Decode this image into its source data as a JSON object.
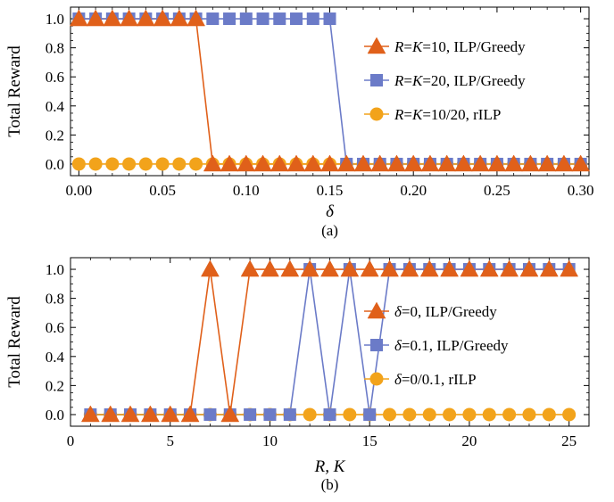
{
  "chart_data": [
    {
      "type": "line",
      "caption": "(a)",
      "xlabel": "δ",
      "ylabel": "Total Reward",
      "xlim": [
        -0.005,
        0.305
      ],
      "ylim": [
        -0.08,
        1.08
      ],
      "xticks": [
        "0.00",
        "0.05",
        "0.10",
        "0.15",
        "0.20",
        "0.25",
        "0.30"
      ],
      "yticks": [
        "0.0",
        "0.2",
        "0.4",
        "0.6",
        "0.8",
        "1.0"
      ],
      "legend_position": "right",
      "series": [
        {
          "name": "R=K=10, ILP/Greedy",
          "legend": {
            "v1": "R",
            "eq1": "=",
            "v2": "K",
            "rest": "=10, ILP/Greedy"
          },
          "marker": "triangle",
          "color": "#E0601A",
          "x": [
            0.0,
            0.01,
            0.02,
            0.03,
            0.04,
            0.05,
            0.06,
            0.07,
            0.08,
            0.09,
            0.1,
            0.11,
            0.12,
            0.13,
            0.14,
            0.15,
            0.16,
            0.17,
            0.18,
            0.19,
            0.2,
            0.21,
            0.22,
            0.23,
            0.24,
            0.25,
            0.26,
            0.27,
            0.28,
            0.29,
            0.3
          ],
          "y": [
            1,
            1,
            1,
            1,
            1,
            1,
            1,
            1,
            0,
            0,
            0,
            0,
            0,
            0,
            0,
            0,
            0,
            0,
            0,
            0,
            0,
            0,
            0,
            0,
            0,
            0,
            0,
            0,
            0,
            0,
            0
          ]
        },
        {
          "name": "R=K=20, ILP/Greedy",
          "legend": {
            "v1": "R",
            "eq1": "=",
            "v2": "K",
            "rest": "=20, ILP/Greedy"
          },
          "marker": "square",
          "color": "#6B7BC8",
          "x": [
            0.0,
            0.01,
            0.02,
            0.03,
            0.04,
            0.05,
            0.06,
            0.07,
            0.08,
            0.09,
            0.1,
            0.11,
            0.12,
            0.13,
            0.14,
            0.15,
            0.16,
            0.17,
            0.18,
            0.19,
            0.2,
            0.21,
            0.22,
            0.23,
            0.24,
            0.25,
            0.26,
            0.27,
            0.28,
            0.29,
            0.3
          ],
          "y": [
            1,
            1,
            1,
            1,
            1,
            1,
            1,
            1,
            1,
            1,
            1,
            1,
            1,
            1,
            1,
            1,
            0,
            0,
            0,
            0,
            0,
            0,
            0,
            0,
            0,
            0,
            0,
            0,
            0,
            0,
            0
          ]
        },
        {
          "name": "R=K=10/20, rILP",
          "legend": {
            "v1": "R",
            "eq1": "=",
            "v2": "K",
            "rest": "=10/20, rILP"
          },
          "marker": "circle",
          "color": "#F2A31B",
          "x": [
            0.0,
            0.01,
            0.02,
            0.03,
            0.04,
            0.05,
            0.06,
            0.07,
            0.08,
            0.09,
            0.1,
            0.11,
            0.12,
            0.13,
            0.14,
            0.15,
            0.16,
            0.17,
            0.18,
            0.19,
            0.2,
            0.21,
            0.22,
            0.23,
            0.24,
            0.25,
            0.26,
            0.27,
            0.28,
            0.29,
            0.3
          ],
          "y": [
            0,
            0,
            0,
            0,
            0,
            0,
            0,
            0,
            0,
            0,
            0,
            0,
            0,
            0,
            0,
            0,
            0,
            0,
            0,
            0,
            0,
            0,
            0,
            0,
            0,
            0,
            0,
            0,
            0,
            0,
            0
          ]
        }
      ]
    },
    {
      "type": "line",
      "caption": "(b)",
      "xlabel": "R, K",
      "ylabel": "Total Reward",
      "xlim": [
        0,
        26
      ],
      "ylim": [
        -0.08,
        1.08
      ],
      "xticks": [
        "0",
        "5",
        "10",
        "15",
        "20",
        "25"
      ],
      "yticks": [
        "0.0",
        "0.2",
        "0.4",
        "0.6",
        "0.8",
        "1.0"
      ],
      "legend_position": "right",
      "series": [
        {
          "name": "δ=0, ILP/Greedy",
          "legend": {
            "v1": "δ",
            "rest": "=0, ILP/Greedy"
          },
          "marker": "triangle",
          "color": "#E0601A",
          "x": [
            1,
            2,
            3,
            4,
            5,
            6,
            7,
            8,
            9,
            10,
            11,
            12,
            13,
            14,
            15,
            16,
            17,
            18,
            19,
            20,
            21,
            22,
            23,
            24,
            25
          ],
          "y": [
            0,
            0,
            0,
            0,
            0,
            0,
            1,
            0,
            1,
            1,
            1,
            1,
            1,
            1,
            1,
            1,
            1,
            1,
            1,
            1,
            1,
            1,
            1,
            1,
            1
          ]
        },
        {
          "name": "δ=0.1, ILP/Greedy",
          "legend": {
            "v1": "δ",
            "rest": "=0.1, ILP/Greedy"
          },
          "marker": "square",
          "color": "#6B7BC8",
          "x": [
            1,
            2,
            3,
            4,
            5,
            6,
            7,
            8,
            9,
            10,
            11,
            12,
            13,
            14,
            15,
            16,
            17,
            18,
            19,
            20,
            21,
            22,
            23,
            24,
            25
          ],
          "y": [
            0,
            0,
            0,
            0,
            0,
            0,
            0,
            0,
            0,
            0,
            0,
            1,
            0,
            1,
            0,
            1,
            1,
            1,
            1,
            1,
            1,
            1,
            1,
            1,
            1
          ]
        },
        {
          "name": "δ=0/0.1, rILP",
          "legend": {
            "v1": "δ",
            "rest": "=0/0.1, rILP"
          },
          "marker": "circle",
          "color": "#F2A31B",
          "x": [
            1,
            2,
            3,
            4,
            5,
            6,
            7,
            8,
            9,
            10,
            11,
            12,
            13,
            14,
            15,
            16,
            17,
            18,
            19,
            20,
            21,
            22,
            23,
            24,
            25
          ],
          "y": [
            0,
            0,
            0,
            0,
            0,
            0,
            0,
            0,
            0,
            0,
            0,
            0,
            0,
            0,
            0,
            0,
            0,
            0,
            0,
            0,
            0,
            0,
            0,
            0,
            0
          ]
        }
      ]
    }
  ]
}
